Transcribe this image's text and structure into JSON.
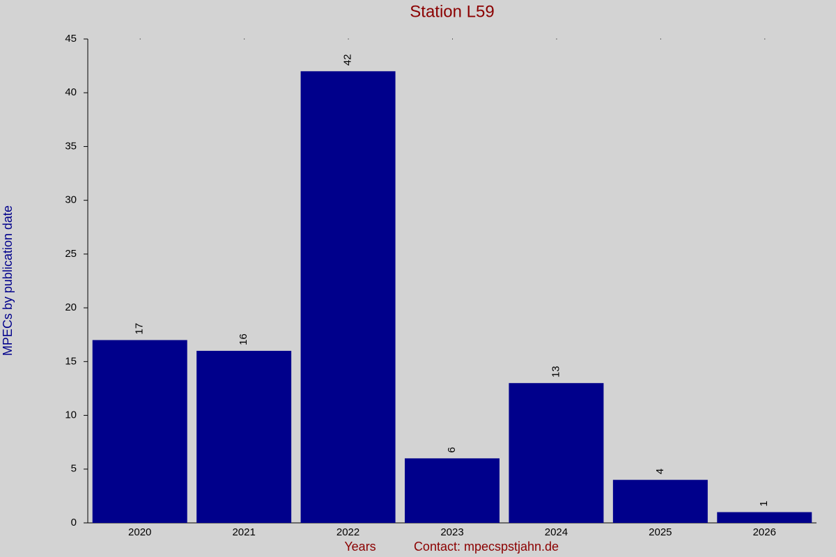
{
  "chart_data": {
    "type": "bar",
    "title": "Station L59",
    "x_label": "Years",
    "y_label": "MPECs by publication date",
    "annotation": "Contact: mpecspstjahn.de",
    "categories": [
      "2020",
      "2021",
      "2022",
      "2023",
      "2024",
      "2025",
      "2026"
    ],
    "values": [
      17,
      16,
      42,
      6,
      13,
      4,
      1
    ],
    "color": "#00008b",
    "title_color": "#8b0000",
    "label_color": "#00008b",
    "ylim": [
      0,
      45
    ],
    "yticks": [
      0,
      5,
      10,
      15,
      20,
      25,
      30,
      35,
      40,
      45
    ],
    "grid": false
  }
}
